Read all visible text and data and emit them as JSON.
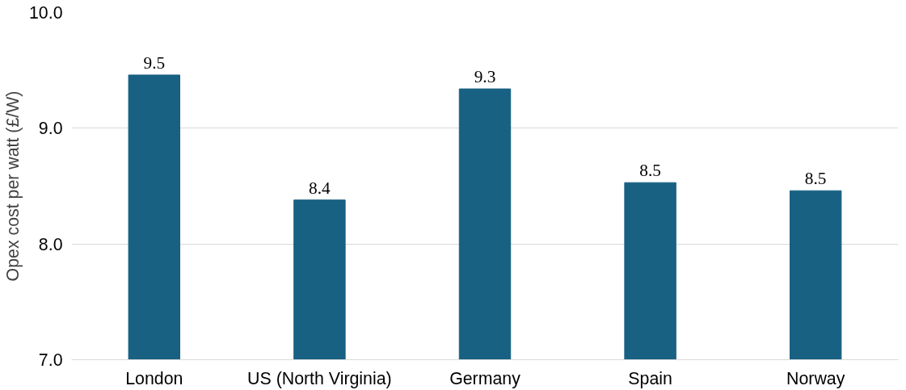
{
  "chart_data": {
    "type": "bar",
    "ylabel": "Opex cost per watt (£/W)",
    "categories": [
      "London",
      "US (North Virginia)",
      "Germany",
      "Spain",
      "Norway"
    ],
    "values": [
      9.46,
      8.38,
      9.34,
      8.53,
      8.46
    ],
    "value_labels": [
      "9.5",
      "8.4",
      "9.3",
      "8.5",
      "8.5"
    ],
    "color": "#186183",
    "ylim": [
      7.0,
      10.0
    ],
    "yticks": [
      {
        "value": 7.0,
        "label": "7.0"
      },
      {
        "value": 8.0,
        "label": "8.0"
      },
      {
        "value": 9.0,
        "label": "9.0"
      },
      {
        "value": 10.0,
        "label": "10.0"
      }
    ],
    "grid": "y"
  }
}
